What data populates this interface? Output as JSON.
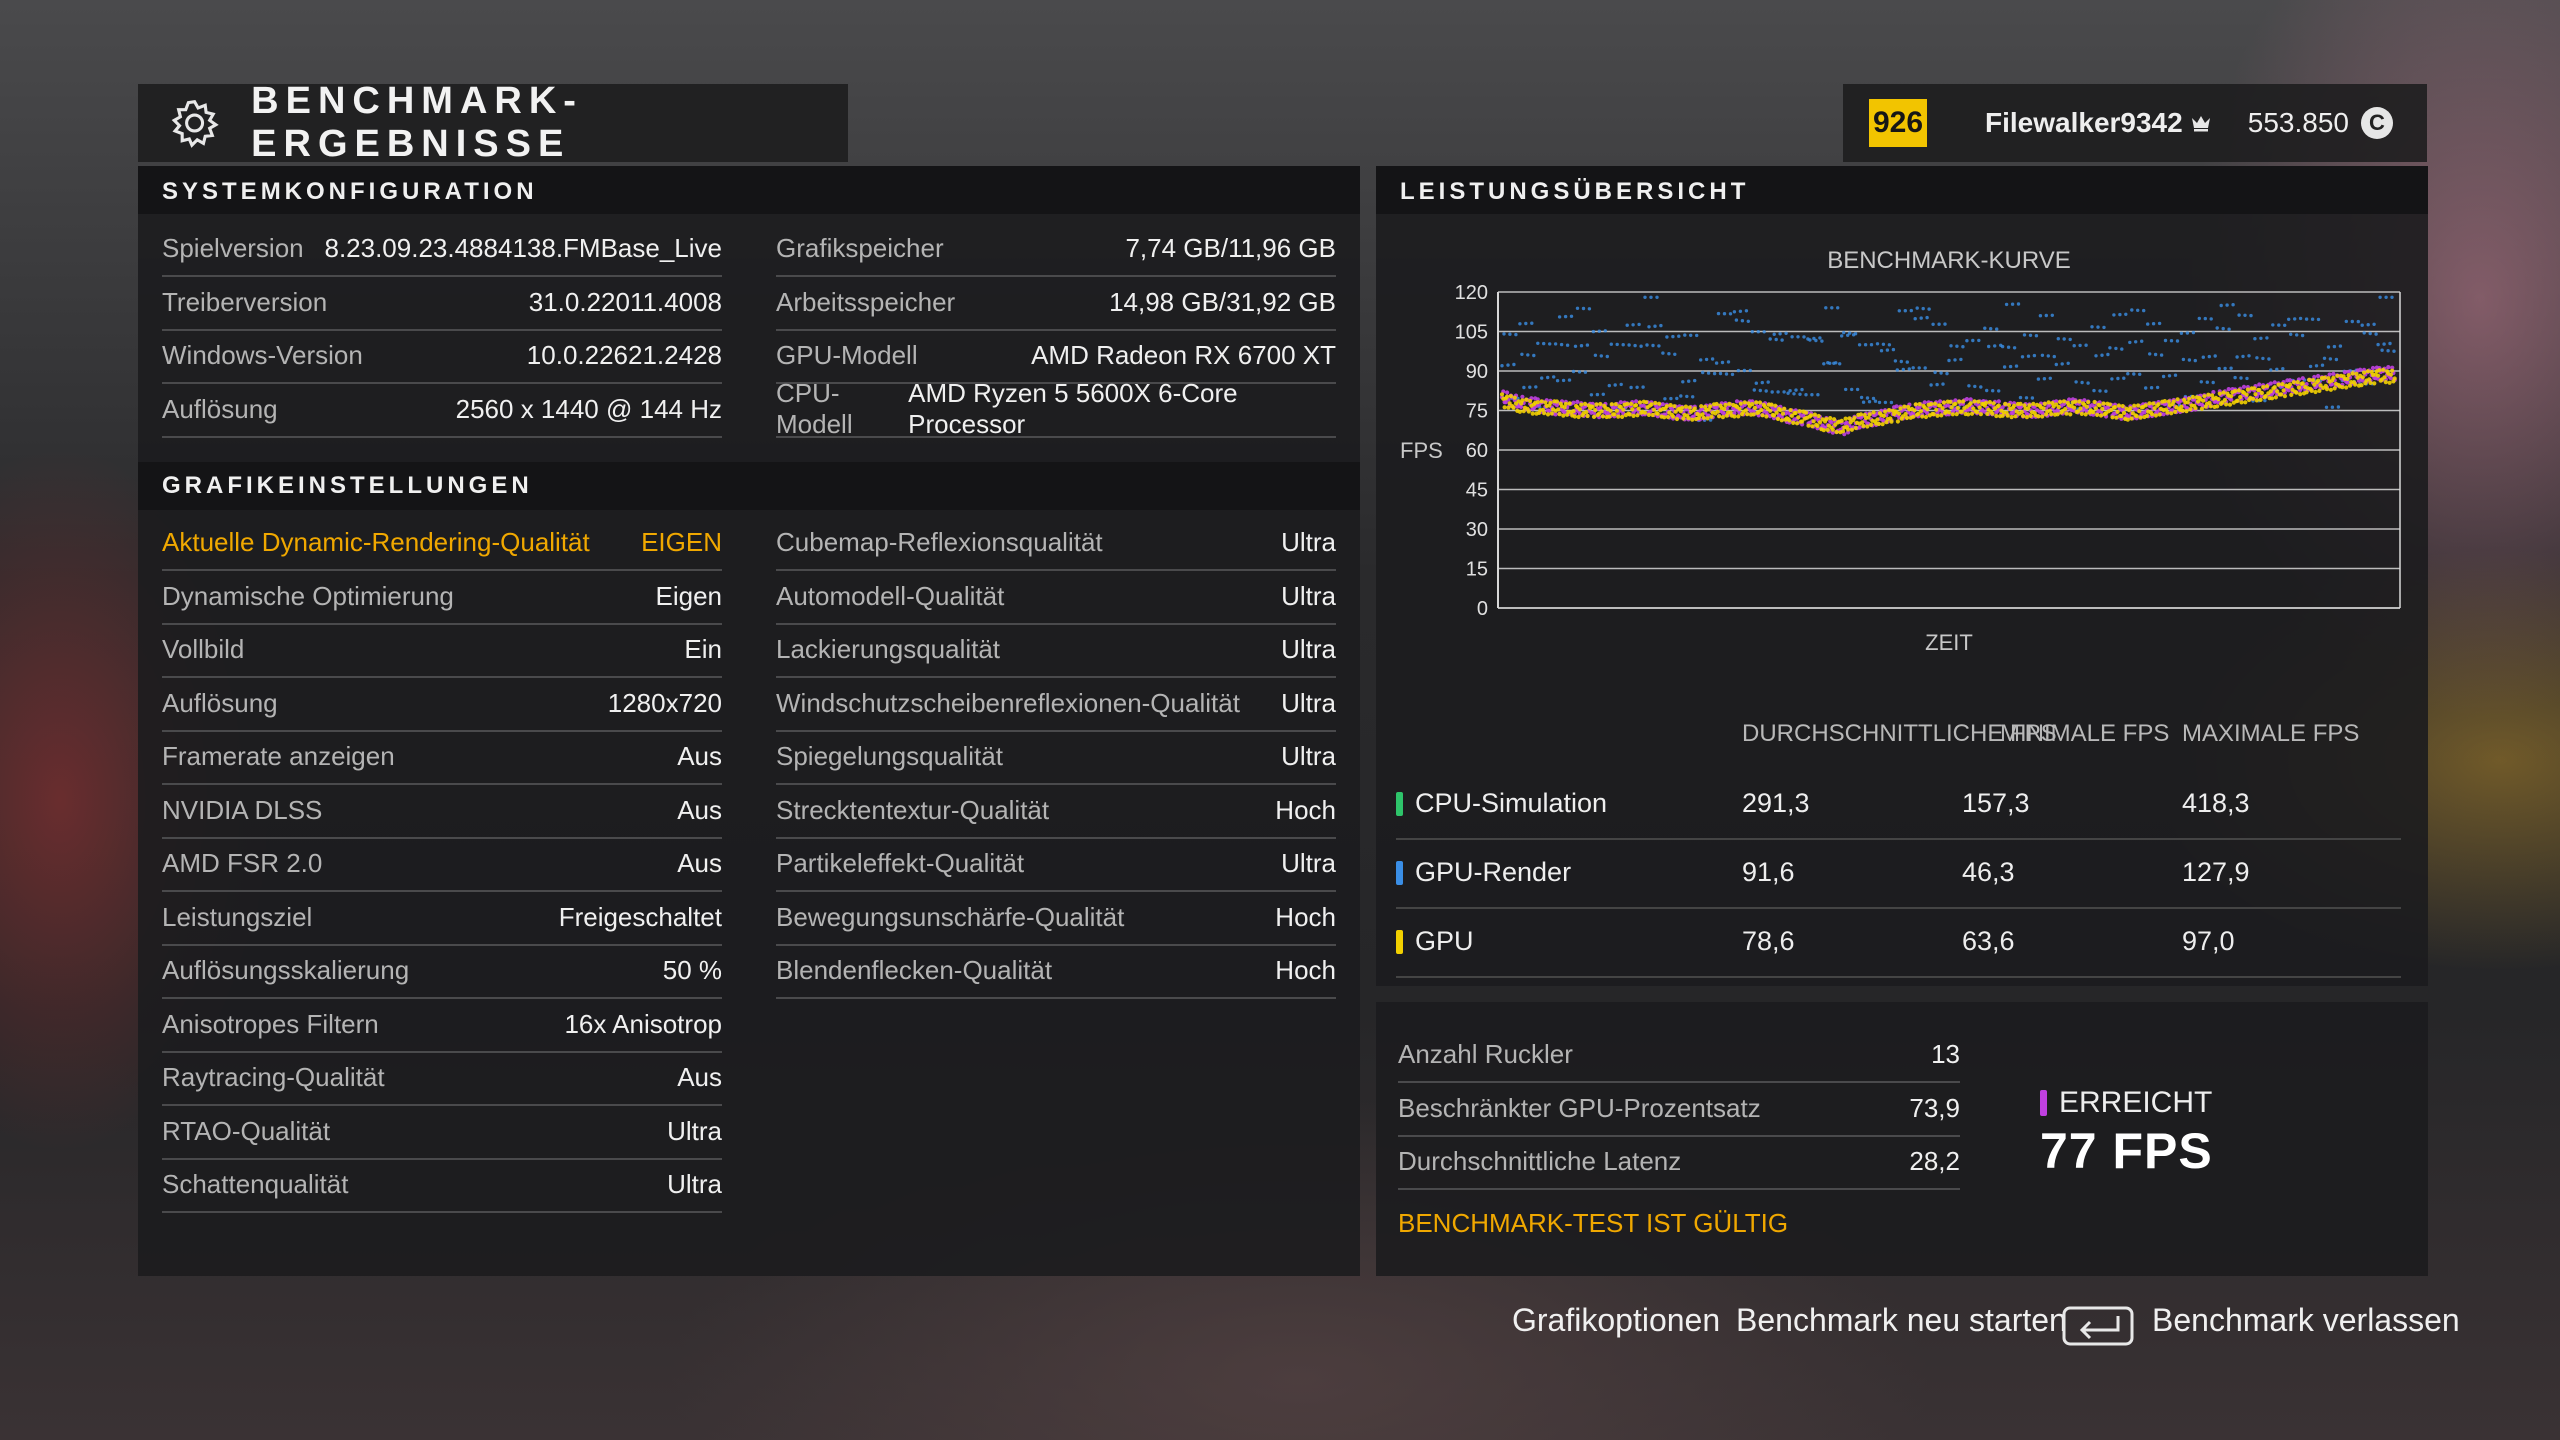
{
  "header": {
    "title": "BENCHMARK-ERGEBNISSE",
    "icon": "gear-icon"
  },
  "user": {
    "level": "926",
    "name": "Filewalker9342",
    "credits": "553.850",
    "currency_symbol": "C"
  },
  "system": {
    "title": "SYSTEMKONFIGURATION",
    "left": [
      {
        "label": "Spielversion",
        "value": "8.23.09.23.4884138.FMBase_Live"
      },
      {
        "label": "Treiberversion",
        "value": "31.0.22011.4008"
      },
      {
        "label": "Windows-Version",
        "value": "10.0.22621.2428"
      },
      {
        "label": "Auflösung",
        "value": "2560 x 1440 @ 144 Hz"
      }
    ],
    "right": [
      {
        "label": "Grafikspeicher",
        "value": "7,74 GB/11,96 GB"
      },
      {
        "label": "Arbeitsspeicher",
        "value": "14,98 GB/31,92 GB"
      },
      {
        "label": "GPU-Modell",
        "value": "AMD Radeon RX 6700 XT"
      },
      {
        "label": "CPU-Modell",
        "value": "AMD Ryzen 5 5600X 6-Core Processor"
      }
    ]
  },
  "graphics": {
    "title": "GRAFIKEINSTELLUNGEN",
    "left": [
      {
        "label": "Aktuelle Dynamic-Rendering-Qualität",
        "value": "EIGEN"
      },
      {
        "label": "Dynamische Optimierung",
        "value": "Eigen"
      },
      {
        "label": "Vollbild",
        "value": "Ein"
      },
      {
        "label": "Auflösung",
        "value": "1280x720"
      },
      {
        "label": "Framerate anzeigen",
        "value": "Aus"
      },
      {
        "label": "NVIDIA DLSS",
        "value": "Aus"
      },
      {
        "label": "AMD FSR 2.0",
        "value": "Aus"
      },
      {
        "label": "Leistungsziel",
        "value": "Freigeschaltet"
      },
      {
        "label": "Auflösungsskalierung",
        "value": "50 %"
      },
      {
        "label": "Anisotropes Filtern",
        "value": "16x Anisotrop"
      },
      {
        "label": "Raytracing-Qualität",
        "value": "Aus"
      },
      {
        "label": "RTAO-Qualität",
        "value": "Ultra"
      },
      {
        "label": "Schattenqualität",
        "value": "Ultra"
      }
    ],
    "right": [
      {
        "label": "Cubemap-Reflexionsqualität",
        "value": "Ultra"
      },
      {
        "label": "Automodell-Qualität",
        "value": "Ultra"
      },
      {
        "label": "Lackierungsqualität",
        "value": "Ultra"
      },
      {
        "label": "Windschutzscheibenreflexionen-Qualität",
        "value": "Ultra"
      },
      {
        "label": "Spiegelungsqualität",
        "value": "Ultra"
      },
      {
        "label": "Strecktentextur-Qualität",
        "value": "Hoch"
      },
      {
        "label": "Partikeleffekt-Qualität",
        "value": "Ultra"
      },
      {
        "label": "Bewegungsunschärfe-Qualität",
        "value": "Hoch"
      },
      {
        "label": "Blendenflecken-Qualität",
        "value": "Hoch"
      }
    ]
  },
  "performance": {
    "title": "LEISTUNGSÜBERSICHT",
    "columns": [
      "DURCHSCHNITTLICHE FPS",
      "MINIMALE FPS",
      "MAXIMALE FPS"
    ],
    "rows": [
      {
        "name": "CPU-Simulation",
        "avg": "291,3",
        "min": "157,3",
        "max": "418,3",
        "color": "#2ec46a"
      },
      {
        "name": "GPU-Render",
        "avg": "91,6",
        "min": "46,3",
        "max": "127,9",
        "color": "#3a8ee6"
      },
      {
        "name": "GPU",
        "avg": "78,6",
        "min": "63,6",
        "max": "97,0",
        "color": "#f2d000"
      }
    ]
  },
  "summary": {
    "rows": [
      {
        "label": "Anzahl Ruckler",
        "value": "13"
      },
      {
        "label": "Beschränkter GPU-Prozentsatz",
        "value": "73,9"
      },
      {
        "label": "Durchschnittliche Latenz",
        "value": "28,2"
      }
    ],
    "valid_text": "BENCHMARK-TEST IST GÜLTIG",
    "achieved_label": "ERREICHT",
    "achieved_value": "77 FPS"
  },
  "footer": {
    "graphics_options": "Grafikoptionen",
    "restart": "Benchmark neu starten",
    "exit": "Benchmark verlassen"
  },
  "chart_data": {
    "type": "scatter",
    "title": "BENCHMARK-KURVE",
    "xlabel": "ZEIT",
    "ylabel": "FPS",
    "ylim": [
      0,
      120
    ],
    "yticks": [
      0,
      15,
      30,
      45,
      60,
      75,
      90,
      105,
      120
    ],
    "grid": true,
    "series": [
      {
        "color": "#3a8ee6",
        "description_points_range": [
          45,
          120
        ],
        "samples": [
          92,
          96,
          88,
          99,
          101,
          94,
          87,
          97,
          110,
          93,
          90,
          85,
          98,
          104,
          91,
          96,
          89,
          95,
          100,
          97,
          86,
          92,
          99,
          105,
          94,
          90,
          88,
          96,
          102,
          93,
          98,
          91,
          87,
          95,
          99,
          101,
          96,
          89,
          93,
          97,
          104,
          98,
          92,
          94,
          100,
          96,
          90,
          95,
          99,
          106
        ]
      },
      {
        "color": "#c040e0",
        "samples": [
          80,
          78,
          77,
          76,
          76,
          75,
          75,
          76,
          76,
          75,
          74,
          74,
          75,
          76,
          76,
          75,
          73,
          72,
          70,
          68,
          71,
          72,
          74,
          75,
          76,
          76,
          77,
          76,
          76,
          75,
          75,
          76,
          77,
          76,
          75,
          74,
          75,
          76,
          77,
          78,
          80,
          81,
          82,
          83,
          84,
          85,
          86,
          87,
          88,
          89
        ]
      },
      {
        "color": "#f2d000",
        "samples": [
          79,
          77,
          76,
          76,
          75,
          75,
          75,
          75,
          76,
          75,
          74,
          74,
          75,
          75,
          76,
          75,
          73,
          72,
          70,
          69,
          71,
          72,
          73,
          75,
          75,
          76,
          76,
          76,
          75,
          75,
          75,
          76,
          76,
          76,
          75,
          74,
          75,
          76,
          77,
          78,
          79,
          80,
          81,
          82,
          83,
          84,
          85,
          86,
          87,
          88
        ]
      }
    ]
  }
}
